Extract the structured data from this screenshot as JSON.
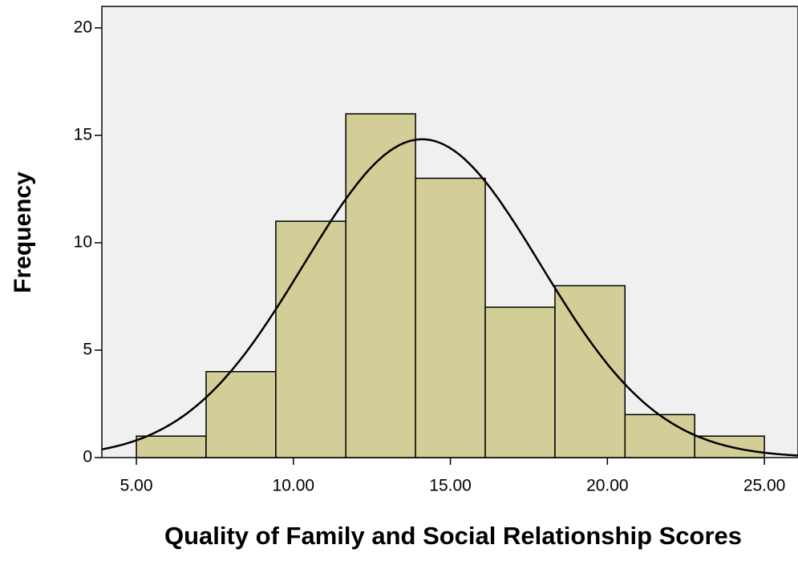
{
  "chart_data": {
    "type": "histogram",
    "x_label": "Quality of Family and Social Relationship Scores",
    "y_label": "Frequency",
    "bins": [
      5,
      7.22,
      9.44,
      11.67,
      13.89,
      16.11,
      18.33,
      20.56,
      22.78,
      25
    ],
    "values": [
      1,
      4,
      11,
      16,
      13,
      7,
      8,
      2,
      1
    ],
    "color": "#d3ce98",
    "curve": {
      "mean": 14.1,
      "std": 3.77
    },
    "xlim": [
      3.9,
      26.07
    ],
    "xticks": [
      {
        "value": 5,
        "label": "5.00"
      },
      {
        "value": 10,
        "label": "10.00"
      },
      {
        "value": 15,
        "label": "15.00"
      },
      {
        "value": 20,
        "label": "20.00"
      },
      {
        "value": 25,
        "label": "25.00"
      }
    ],
    "ylim": [
      0,
      21
    ],
    "yticks": [
      0,
      5,
      10,
      15,
      20
    ],
    "grid": false
  }
}
